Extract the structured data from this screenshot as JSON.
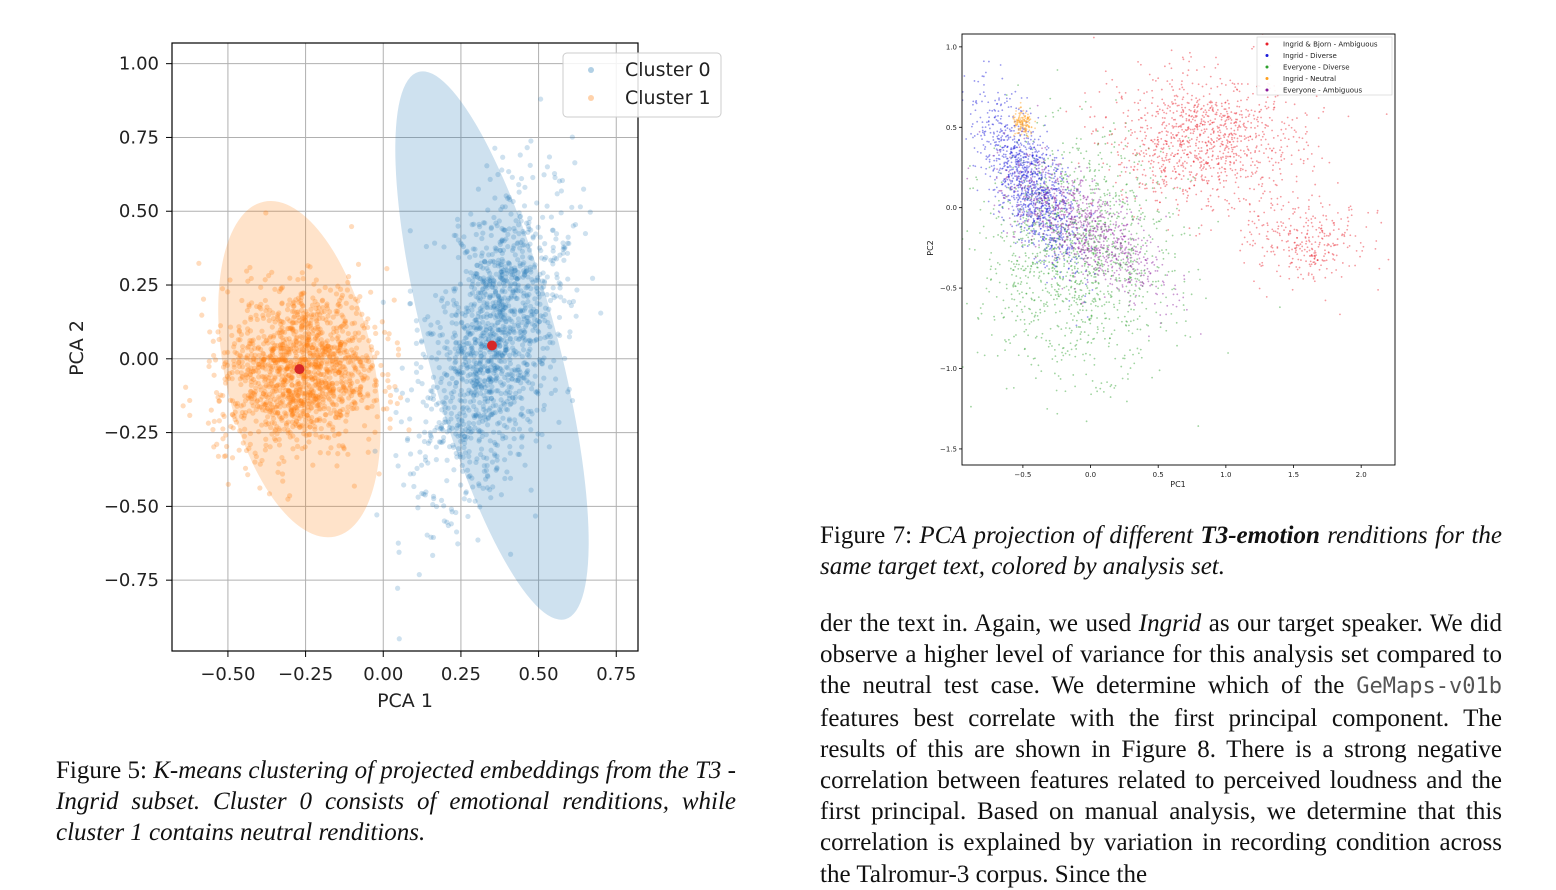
{
  "figure5": {
    "caption_label": "Figure 5:",
    "caption_text": "K-means clustering of projected embeddings from the T3 - Ingrid subset. Cluster 0 consists of emotional renditions, while cluster 1 contains neutral renditions.",
    "chart_data": {
      "type": "scatter",
      "xlabel": "PCA 1",
      "ylabel": "PCA 2",
      "xlim": [
        -0.68,
        0.82
      ],
      "ylim": [
        -0.99,
        1.07
      ],
      "xticks": [
        "−0.50",
        "−0.25",
        "0.00",
        "0.25",
        "0.50",
        "0.75"
      ],
      "xtick_values": [
        -0.5,
        -0.25,
        0,
        0.25,
        0.5,
        0.75
      ],
      "yticks": [
        "1.00",
        "0.75",
        "0.50",
        "0.25",
        "0.00",
        "−0.25",
        "−0.50",
        "−0.75"
      ],
      "ytick_values": [
        1.0,
        0.75,
        0.5,
        0.25,
        0,
        -0.25,
        -0.5,
        -0.75
      ],
      "grid": true,
      "legend_position": "top-right",
      "series": [
        {
          "name": "Cluster 0",
          "color": "#1f77b4",
          "centroid": [
            0.35,
            0.045
          ],
          "ellipse": {
            "center": [
              0.35,
              0.045
            ],
            "semi_axes": [
              0.21,
              0.96
            ],
            "angle_deg": 15
          },
          "spread": {
            "x_sd": 0.11,
            "y_sd": 0.26
          }
        },
        {
          "name": "Cluster 1",
          "color": "#ff7f0e",
          "centroid": [
            -0.27,
            -0.035
          ],
          "ellipse": {
            "center": [
              -0.27,
              -0.035
            ],
            "semi_axes": [
              0.24,
              0.58
            ],
            "angle_deg": 12
          },
          "spread": {
            "x_sd": 0.1,
            "y_sd": 0.14
          }
        }
      ],
      "centroid_color": "#d62728"
    }
  },
  "figure7": {
    "caption_label": "Figure 7:",
    "caption_parts": [
      "PCA projection of different ",
      "T3-emotion",
      " renditions for the same target text, colored by analysis set."
    ],
    "chart_data": {
      "type": "scatter",
      "xlabel": "PC1",
      "ylabel": "PC2",
      "xlim": [
        -0.95,
        2.25
      ],
      "ylim": [
        -1.6,
        1.08
      ],
      "xticks": [
        "−0.5",
        "0.0",
        "0.5",
        "1.0",
        "1.5",
        "2.0"
      ],
      "xtick_values": [
        -0.5,
        0,
        0.5,
        1.0,
        1.5,
        2.0
      ],
      "yticks": [
        "1.0",
        "0.5",
        "0.0",
        "−0.5",
        "−1.0",
        "−1.5"
      ],
      "ytick_values": [
        1.0,
        0.5,
        0,
        -0.5,
        -1.0,
        -1.5
      ],
      "grid": false,
      "legend_position": "top-right",
      "series": [
        {
          "name": "Ingrid & Bjorn - Ambiguous",
          "color": "#e8202a",
          "center": [
            0.9,
            0.42
          ],
          "sd": [
            0.35,
            0.22
          ]
        },
        {
          "name": "Ingrid - Diverse",
          "color": "#1a1ad9",
          "center": [
            -0.45,
            0.15
          ],
          "sd": [
            0.12,
            0.2
          ]
        },
        {
          "name": "Everyone - Diverse",
          "color": "#2ca02c",
          "center": [
            -0.1,
            -0.3
          ],
          "sd": [
            0.35,
            0.35
          ]
        },
        {
          "name": "Ingrid - Neutral",
          "color": "#ffa01e",
          "center": [
            -0.5,
            0.52
          ],
          "sd": [
            0.04,
            0.04
          ]
        },
        {
          "name": "Everyone - Ambiguous",
          "color": "#8a1a9c",
          "center": [
            -0.05,
            -0.12
          ],
          "sd": [
            0.2,
            0.15
          ]
        }
      ]
    }
  },
  "body_text": {
    "p1_a": "der the text in. Again, we used ",
    "p1_italic": "Ingrid",
    "p1_b": " as our target speaker. We did observe a higher level of variance for this analysis set compared to the neutral test case. We determine which of the ",
    "p1_code": "GeMaps-v01b",
    "p1_c": " features best correlate with the first principal component. The results of this are shown in Figure 8. There is a strong negative correlation between features related to perceived loudness and the first principal. Based on manual analysis, we determine that this correlation is explained by variation in recording condition across the Talromur-3 corpus. Since the"
  }
}
